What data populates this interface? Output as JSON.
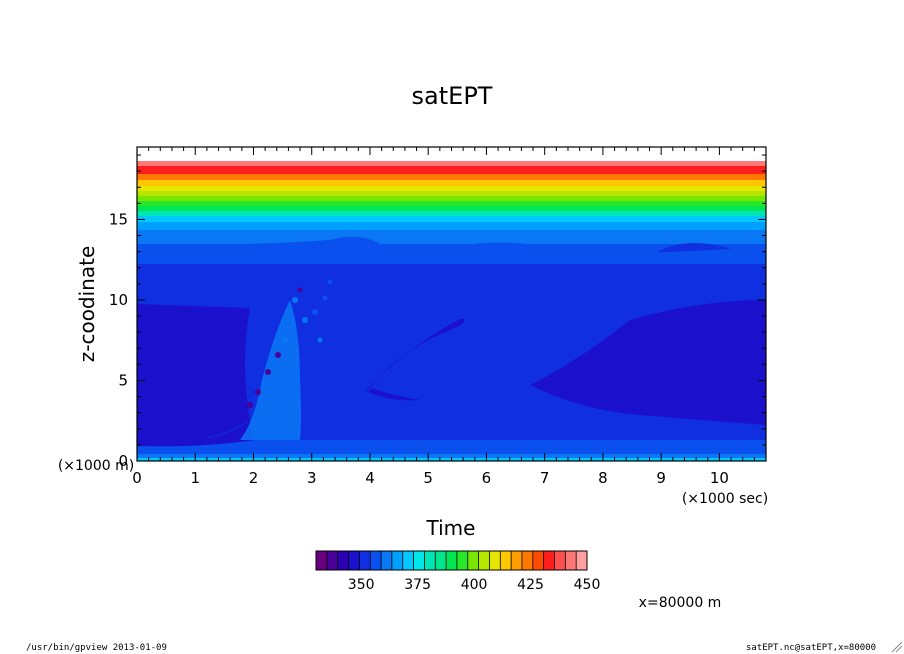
{
  "chart_data": {
    "type": "heatmap",
    "title": "satEPT",
    "xlabel": "Time",
    "ylabel": "z-coodinate",
    "x_unit_note": "(×1000 sec)",
    "y_unit_note": "(×1000 m)",
    "xlim": [
      0,
      10.8
    ],
    "ylim": [
      0,
      19.5
    ],
    "x_ticks": [
      "0",
      "1",
      "2",
      "3",
      "4",
      "5",
      "6",
      "7",
      "8",
      "9",
      "10"
    ],
    "y_ticks": [
      "0",
      "5",
      "10",
      "15"
    ],
    "colorbar": {
      "min": 330,
      "max": 450,
      "step": 5,
      "tick_labels": [
        "350",
        "375",
        "400",
        "425",
        "450"
      ],
      "colors": [
        "#6a0080",
        "#4a009a",
        "#2e00b4",
        "#1b10cc",
        "#0f2fe0",
        "#0a50ee",
        "#0a78f5",
        "#00a0ff",
        "#00c8ff",
        "#00e6e6",
        "#00e6b4",
        "#00e68c",
        "#00e650",
        "#28e628",
        "#78e600",
        "#b4e600",
        "#e6e600",
        "#ffc800",
        "#ffa000",
        "#ff7800",
        "#ff4b00",
        "#ff1e1e",
        "#ff5050",
        "#ff7878",
        "#ffa0a0"
      ]
    },
    "field_description_levels": [
      {
        "z_range": [
          0,
          0.3
        ],
        "value": 380
      },
      {
        "z_range": [
          0.3,
          1.2
        ],
        "value": 355
      },
      {
        "z_range": [
          1.2,
          2.5
        ],
        "value": 345
      },
      {
        "z_range": [
          2.5,
          10
        ],
        "value": 340
      },
      {
        "z_range": [
          10,
          12.5
        ],
        "value": 345
      },
      {
        "z_range": [
          12.5,
          14.5
        ],
        "value": 350
      },
      {
        "z_range": [
          14.5,
          15.5
        ],
        "value": 355
      },
      {
        "z_range": [
          15.5,
          16.5
        ],
        "value": 375
      },
      {
        "z_range": [
          16.5,
          17.3
        ],
        "value": 395
      },
      {
        "z_range": [
          17.3,
          18
        ],
        "value": 410
      },
      {
        "z_range": [
          18,
          18.6
        ],
        "value": 425
      },
      {
        "z_range": [
          18.6,
          19
        ],
        "value": 440
      }
    ]
  },
  "annotation_x": "x=80000 m",
  "footer_left": "/usr/bin/gpview  2013-01-09",
  "footer_right": "satEPT.nc@satEPT,x=80000"
}
